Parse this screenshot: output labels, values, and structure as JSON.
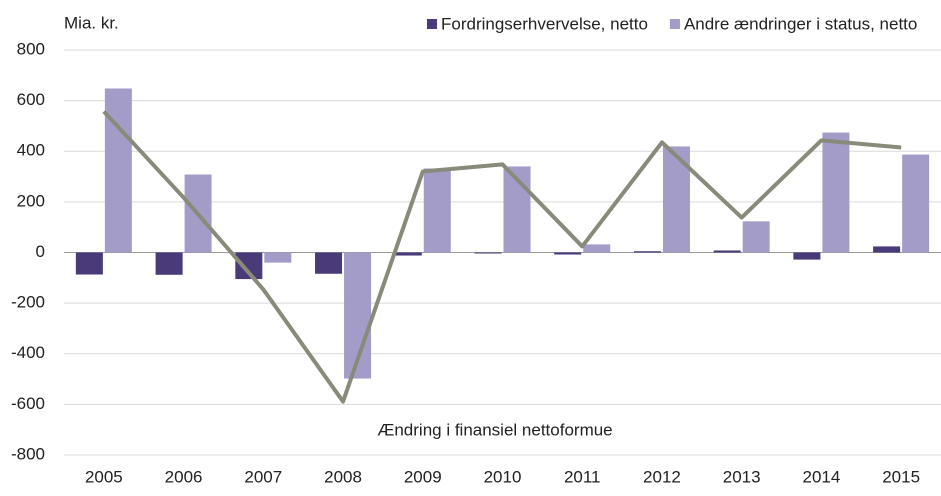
{
  "chart_data": {
    "type": "bar",
    "y_label": "Mia. kr.",
    "categories": [
      "2005",
      "2006",
      "2007",
      "2008",
      "2009",
      "2010",
      "2011",
      "2012",
      "2013",
      "2014",
      "2015"
    ],
    "series": [
      {
        "name": "Fordringserhvervelse, netto",
        "color": "#4b3a7a",
        "type": "bar",
        "values": [
          -87,
          -88,
          -105,
          -84,
          -12,
          0,
          -8,
          5,
          8,
          -28,
          24
        ]
      },
      {
        "name": "Andre ændringer i status, netto",
        "color": "#a39cc8",
        "type": "bar",
        "values": [
          648,
          308,
          -40,
          -498,
          332,
          340,
          32,
          419,
          123,
          474,
          387
        ]
      },
      {
        "name": "Ændring i finansiel nettoformue",
        "color": "#8a8a7a",
        "type": "line",
        "values": [
          557,
          217,
          -146,
          -589,
          320,
          348,
          24,
          435,
          138,
          443,
          415
        ]
      }
    ],
    "ylim": [
      -800,
      800
    ],
    "yticks": [
      -800,
      -600,
      -400,
      -200,
      0,
      200,
      400,
      600,
      800
    ],
    "grid": true
  }
}
